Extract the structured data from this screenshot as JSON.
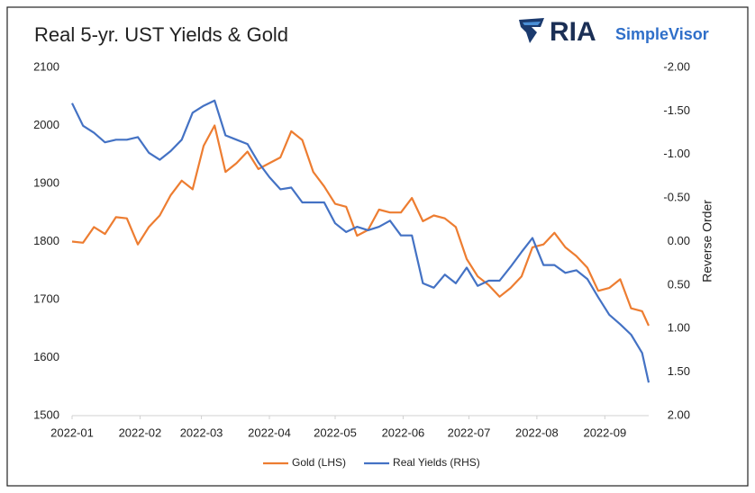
{
  "chart_data": {
    "type": "line",
    "title": "Real 5-yr. UST Yields & Gold",
    "logo_text": "RIA",
    "logo_subtext": "SimpleVisor",
    "y2label": "Reverse Order",
    "x": [
      0,
      5,
      10,
      15,
      20,
      25,
      30,
      35,
      40,
      45,
      50,
      55,
      60,
      65,
      70,
      75,
      80,
      85,
      90,
      95,
      100,
      105,
      110,
      115,
      120,
      125,
      130,
      135,
      140,
      145,
      150,
      155,
      160,
      165,
      170,
      175,
      180,
      185,
      190,
      195,
      200,
      205,
      210,
      215,
      220,
      225,
      230,
      235,
      240,
      245,
      250,
      255,
      260,
      263
    ],
    "xlim": [
      0,
      263
    ],
    "xticks": [
      {
        "value": 0,
        "label": "2022-01"
      },
      {
        "value": 31,
        "label": "2022-02"
      },
      {
        "value": 59,
        "label": "2022-03"
      },
      {
        "value": 90,
        "label": "2022-04"
      },
      {
        "value": 120,
        "label": "2022-05"
      },
      {
        "value": 151,
        "label": "2022-06"
      },
      {
        "value": 181,
        "label": "2022-07"
      },
      {
        "value": 212,
        "label": "2022-08"
      },
      {
        "value": 243,
        "label": "2022-09"
      }
    ],
    "ylim": [
      1500,
      2100
    ],
    "yticks": [
      1500,
      1600,
      1700,
      1800,
      1900,
      2000,
      2100
    ],
    "y2lim": [
      -2,
      2
    ],
    "y2_reverse": true,
    "y2ticks": [
      {
        "value": -2,
        "label": "-2.00"
      },
      {
        "value": -1.5,
        "label": "-1.50"
      },
      {
        "value": -1,
        "label": "-1.00"
      },
      {
        "value": -0.5,
        "label": "-0.50"
      },
      {
        "value": 0,
        "label": "0.00"
      },
      {
        "value": 0.5,
        "label": "0.50"
      },
      {
        "value": 1,
        "label": "1.00"
      },
      {
        "value": 1.5,
        "label": "1.50"
      },
      {
        "value": 2,
        "label": "2.00"
      }
    ],
    "legend": "bottom",
    "series": [
      {
        "name": "Gold (LHS)",
        "color": "#ed7d31",
        "values": [
          1800,
          1798,
          1825,
          1813,
          1842,
          1840,
          1795,
          1825,
          1845,
          1880,
          1905,
          1890,
          1965,
          2000,
          1920,
          1935,
          1955,
          1925,
          1935,
          1945,
          1990,
          1975,
          1920,
          1895,
          1865,
          1860,
          1810,
          1820,
          1855,
          1850,
          1850,
          1875,
          1835,
          1845,
          1840,
          1825,
          1770,
          1740,
          1725,
          1705,
          1720,
          1740,
          1790,
          1795,
          1815,
          1790,
          1775,
          1755,
          1715,
          1720,
          1735,
          1685,
          1680,
          1655
        ]
      },
      {
        "name": "Real Yields (RHS)",
        "color": "#4472c4",
        "axis": "y2",
        "values": [
          -1.59,
          -1.33,
          -1.25,
          -1.14,
          -1.17,
          -1.17,
          -1.2,
          -1.02,
          -0.94,
          -1.04,
          -1.17,
          -1.48,
          -1.56,
          -1.62,
          -1.22,
          -1.17,
          -1.12,
          -0.91,
          -0.74,
          -0.6,
          -0.62,
          -0.45,
          -0.45,
          -0.45,
          -0.21,
          -0.11,
          -0.17,
          -0.13,
          -0.17,
          -0.24,
          -0.07,
          -0.07,
          0.48,
          0.53,
          0.38,
          0.48,
          0.3,
          0.51,
          0.45,
          0.45,
          0.29,
          0.12,
          -0.04,
          0.27,
          0.27,
          0.36,
          0.33,
          0.43,
          0.64,
          0.84,
          0.95,
          1.07,
          1.28,
          1.62
        ]
      }
    ]
  }
}
